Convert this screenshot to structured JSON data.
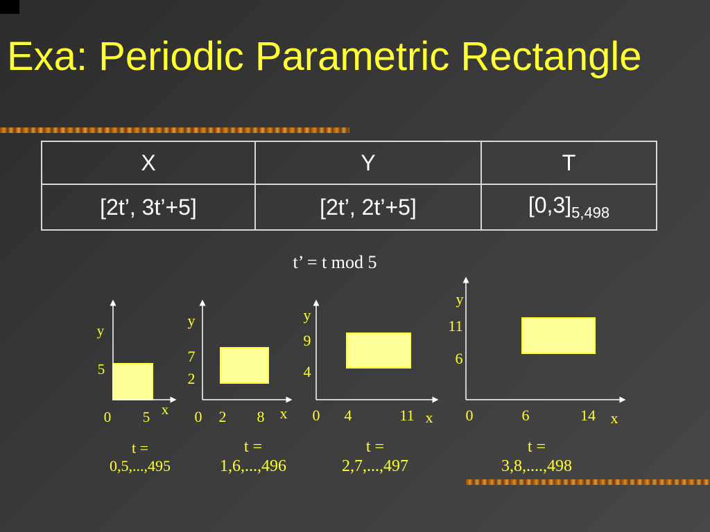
{
  "title": "Exa: Periodic Parametric Rectangle",
  "table": {
    "headers": [
      "X",
      "Y",
      "T"
    ],
    "row": {
      "x": "[2t’, 3t’+5]",
      "y": "[2t’, 2t’+5]",
      "t_main": "[0,3]",
      "t_sub": "5,498"
    }
  },
  "formula": "t’ = t mod 5",
  "colors": {
    "title": "#ffff33",
    "rect_fill": "#ffff99",
    "rect_stroke": "#ffff33",
    "axes": "#ffffff",
    "stripe": "#d98c1f"
  },
  "chart_data": [
    {
      "type": "diagram",
      "x_axis_label": "x",
      "y_axis_label": "y",
      "x_ticks": [
        "0",
        "5"
      ],
      "y_ticks": [
        "5"
      ],
      "rect": {
        "x0": 0,
        "x1": 5,
        "y0": 0,
        "y1": 5
      },
      "t_line1": "t =",
      "t_line2": "0,5,...,495"
    },
    {
      "type": "diagram",
      "x_axis_label": "x",
      "y_axis_label": "y",
      "x_ticks": [
        "0",
        "2",
        "8"
      ],
      "y_ticks": [
        "7",
        "2"
      ],
      "rect": {
        "x0": 2,
        "x1": 8,
        "y0": 2,
        "y1": 7
      },
      "t_line1": "t =",
      "t_line2": "1,6,...,496"
    },
    {
      "type": "diagram",
      "x_axis_label": "x",
      "y_axis_label": "y",
      "x_ticks": [
        "0",
        "4",
        "11"
      ],
      "y_ticks": [
        "9",
        "4"
      ],
      "rect": {
        "x0": 4,
        "x1": 11,
        "y0": 4,
        "y1": 9
      },
      "t_line1": "t =",
      "t_line2": "2,7,...,497"
    },
    {
      "type": "diagram",
      "x_axis_label": "x",
      "y_axis_label": "y",
      "x_ticks": [
        "0",
        "6",
        "14"
      ],
      "y_ticks": [
        "11",
        "6"
      ],
      "rect": {
        "x0": 6,
        "x1": 14,
        "y0": 6,
        "y1": 11
      },
      "t_line1": "t =",
      "t_line2": "3,8,....,498"
    }
  ]
}
